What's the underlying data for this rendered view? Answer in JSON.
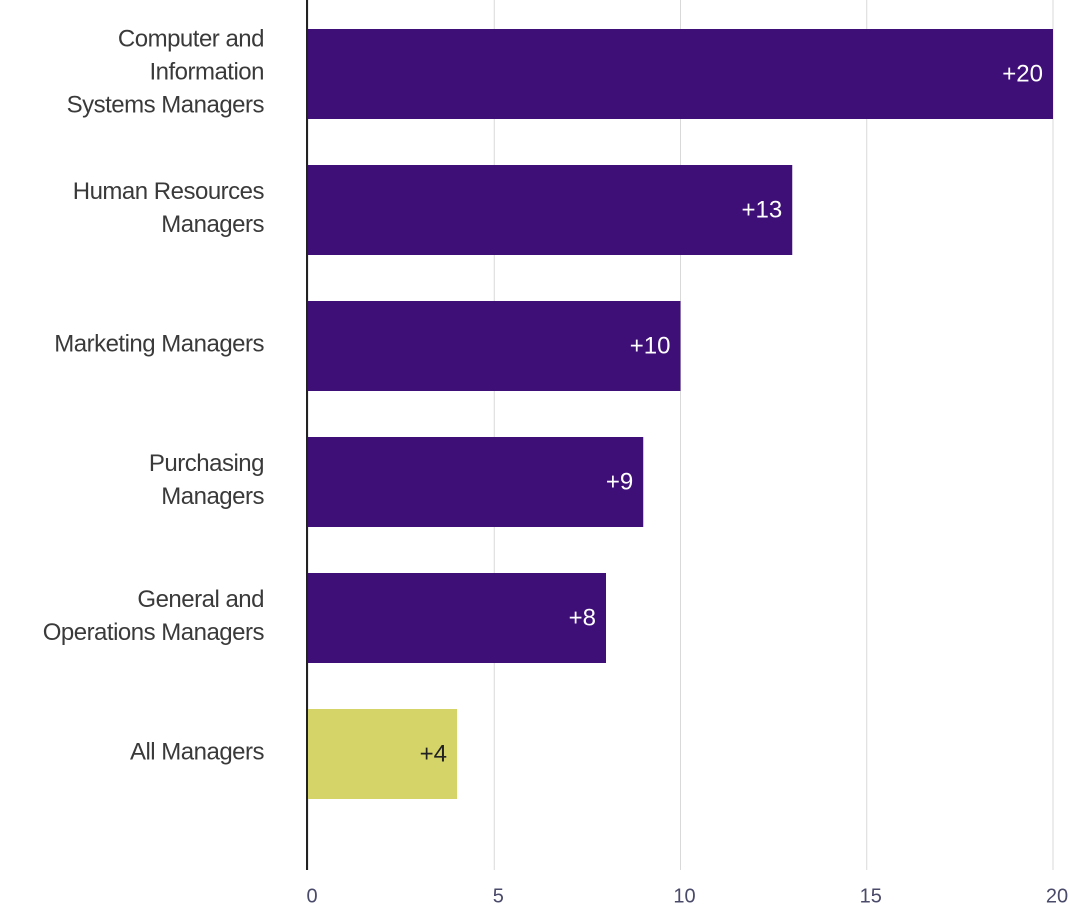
{
  "chart_data": {
    "type": "bar",
    "orientation": "horizontal",
    "categories": [
      "Computer and\nInformation\nSystems Managers",
      "Human Resources\nManagers",
      "Marketing Managers",
      "Purchasing\nManagers",
      "General and\nOperations Managers",
      "All Managers"
    ],
    "values": [
      20,
      13,
      10,
      9,
      8,
      4
    ],
    "value_labels": [
      "+20",
      "+13",
      "+10",
      "+9",
      "+8",
      "+4"
    ],
    "colors": [
      "#3f0f78",
      "#3f0f78",
      "#3f0f78",
      "#3f0f78",
      "#3f0f78",
      "#d4d468"
    ],
    "xlim": [
      0,
      20
    ],
    "xticks": [
      0,
      5,
      10,
      15,
      20
    ],
    "grid": true
  }
}
